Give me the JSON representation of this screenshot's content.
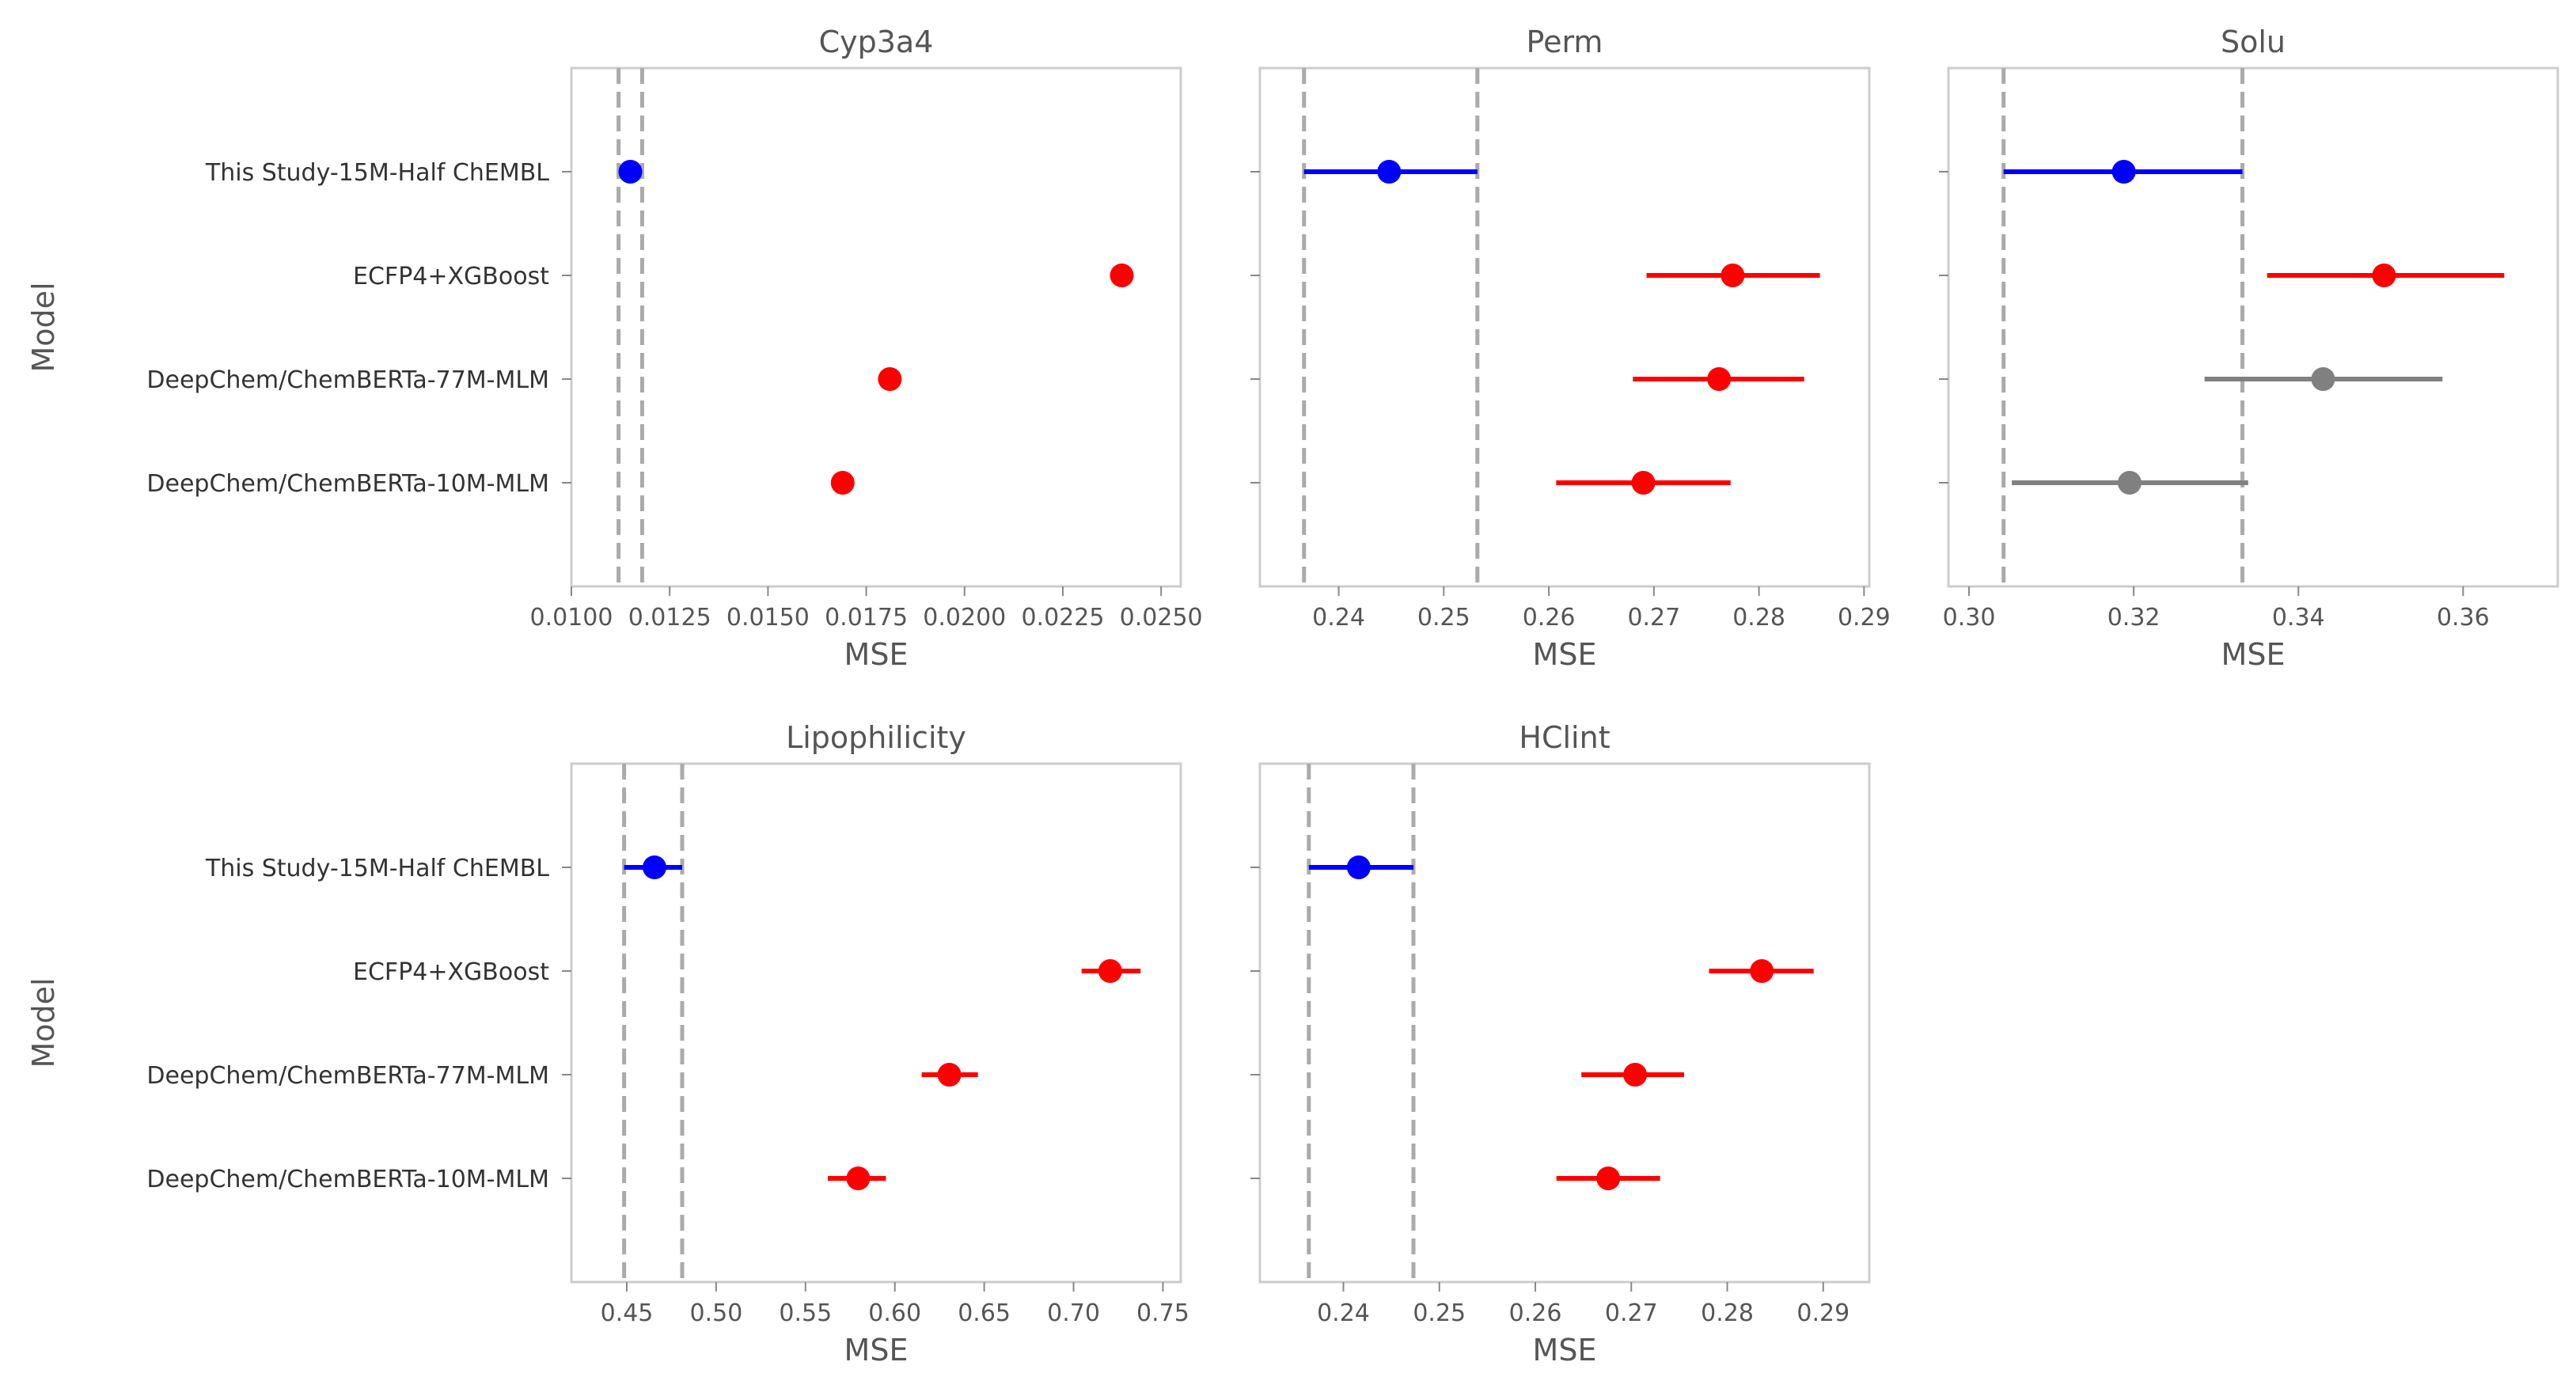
{
  "colors": {
    "this_study": "#0000ff",
    "significant": "#ff0000",
    "not_significant": "#808080",
    "reference": "#aaaaaa"
  },
  "ylabel": "Model",
  "xlabel": "MSE",
  "chart_data": [
    {
      "type": "scatter",
      "title": "Cyp3a4",
      "xlabel": "MSE",
      "ylabel": "Model",
      "categories": [
        "This Study-15M-Half ChEMBL",
        "ECFP4+XGBoost",
        "DeepChem/ChemBERTa-77M-MLM",
        "DeepChem/ChemBERTa-10M-MLM"
      ],
      "xlim": [
        0.01,
        0.0255
      ],
      "xticks": [
        0.01,
        0.0125,
        0.015,
        0.0175,
        0.02,
        0.0225,
        0.025
      ],
      "xtick_labels": [
        "0.0100",
        "0.0125",
        "0.0150",
        "0.0175",
        "0.0200",
        "0.0225",
        "0.0250"
      ],
      "ref_lines": [
        0.0112,
        0.0118
      ],
      "points": [
        {
          "model": "This Study-15M-Half ChEMBL",
          "mse": 0.0115,
          "lo": 0.0115,
          "hi": 0.0115,
          "color": "#0000ff"
        },
        {
          "model": "ECFP4+XGBoost",
          "mse": 0.024,
          "lo": 0.024,
          "hi": 0.024,
          "color": "#ff0000"
        },
        {
          "model": "DeepChem/ChemBERTa-77M-MLM",
          "mse": 0.0181,
          "lo": 0.0181,
          "hi": 0.0181,
          "color": "#ff0000"
        },
        {
          "model": "DeepChem/ChemBERTa-10M-MLM",
          "mse": 0.0169,
          "lo": 0.0169,
          "hi": 0.0169,
          "color": "#ff0000"
        }
      ]
    },
    {
      "type": "scatter",
      "title": "Perm",
      "xlabel": "MSE",
      "categories": [
        "This Study-15M-Half ChEMBL",
        "ECFP4+XGBoost",
        "DeepChem/ChemBERTa-77M-MLM",
        "DeepChem/ChemBERTa-10M-MLM"
      ],
      "xlim": [
        0.2325,
        0.2905
      ],
      "xticks": [
        0.24,
        0.25,
        0.26,
        0.27,
        0.28,
        0.29
      ],
      "xtick_labels": [
        "0.24",
        "0.25",
        "0.26",
        "0.27",
        "0.28",
        "0.29"
      ],
      "ref_lines": [
        0.2367,
        0.2532
      ],
      "points": [
        {
          "model": "This Study-15M-Half ChEMBL",
          "mse": 0.2448,
          "lo": 0.2367,
          "hi": 0.2532,
          "color": "#0000ff"
        },
        {
          "model": "ECFP4+XGBoost",
          "mse": 0.2775,
          "lo": 0.2693,
          "hi": 0.2858,
          "color": "#ff0000"
        },
        {
          "model": "DeepChem/ChemBERTa-77M-MLM",
          "mse": 0.2762,
          "lo": 0.268,
          "hi": 0.2843,
          "color": "#ff0000"
        },
        {
          "model": "DeepChem/ChemBERTa-10M-MLM",
          "mse": 0.269,
          "lo": 0.2607,
          "hi": 0.2773,
          "color": "#ff0000"
        }
      ]
    },
    {
      "type": "scatter",
      "title": "Solu",
      "xlabel": "MSE",
      "categories": [
        "This Study-15M-Half ChEMBL",
        "ECFP4+XGBoost",
        "DeepChem/ChemBERTa-77M-MLM",
        "DeepChem/ChemBERTa-10M-MLM"
      ],
      "xlim": [
        0.2975,
        0.3715
      ],
      "xticks": [
        0.3,
        0.32,
        0.34,
        0.36
      ],
      "xtick_labels": [
        "0.30",
        "0.32",
        "0.34",
        "0.36"
      ],
      "ref_lines": [
        0.3042,
        0.3332
      ],
      "points": [
        {
          "model": "This Study-15M-Half ChEMBL",
          "mse": 0.3188,
          "lo": 0.3042,
          "hi": 0.3332,
          "color": "#0000ff"
        },
        {
          "model": "ECFP4+XGBoost",
          "mse": 0.3504,
          "lo": 0.3362,
          "hi": 0.365,
          "color": "#ff0000"
        },
        {
          "model": "DeepChem/ChemBERTa-77M-MLM",
          "mse": 0.343,
          "lo": 0.3286,
          "hi": 0.3575,
          "color": "#808080"
        },
        {
          "model": "DeepChem/ChemBERTa-10M-MLM",
          "mse": 0.3195,
          "lo": 0.3052,
          "hi": 0.3339,
          "color": "#808080"
        }
      ]
    },
    {
      "type": "scatter",
      "title": "Lipophilicity",
      "xlabel": "MSE",
      "ylabel": "Model",
      "categories": [
        "This Study-15M-Half ChEMBL",
        "ECFP4+XGBoost",
        "DeepChem/ChemBERTa-77M-MLM",
        "DeepChem/ChemBERTa-10M-MLM"
      ],
      "xlim": [
        0.419,
        0.76
      ],
      "xticks": [
        0.45,
        0.5,
        0.55,
        0.6,
        0.65,
        0.7,
        0.75
      ],
      "xtick_labels": [
        "0.45",
        "0.50",
        "0.55",
        "0.60",
        "0.65",
        "0.70",
        "0.75"
      ],
      "ref_lines": [
        0.4485,
        0.481
      ],
      "points": [
        {
          "model": "This Study-15M-Half ChEMBL",
          "mse": 0.4655,
          "lo": 0.4485,
          "hi": 0.481,
          "color": "#0000ff"
        },
        {
          "model": "ECFP4+XGBoost",
          "mse": 0.7205,
          "lo": 0.7045,
          "hi": 0.7375,
          "color": "#ff0000"
        },
        {
          "model": "DeepChem/ChemBERTa-77M-MLM",
          "mse": 0.6305,
          "lo": 0.615,
          "hi": 0.6465,
          "color": "#ff0000"
        },
        {
          "model": "DeepChem/ChemBERTa-10M-MLM",
          "mse": 0.5795,
          "lo": 0.5625,
          "hi": 0.595,
          "color": "#ff0000"
        }
      ]
    },
    {
      "type": "scatter",
      "title": "HClint",
      "xlabel": "MSE",
      "categories": [
        "This Study-15M-Half ChEMBL",
        "ECFP4+XGBoost",
        "DeepChem/ChemBERTa-77M-MLM",
        "DeepChem/ChemBERTa-10M-MLM"
      ],
      "xlim": [
        0.2313,
        0.2948
      ],
      "xticks": [
        0.24,
        0.25,
        0.26,
        0.27,
        0.28,
        0.29
      ],
      "xtick_labels": [
        "0.24",
        "0.25",
        "0.26",
        "0.27",
        "0.28",
        "0.29"
      ],
      "ref_lines": [
        0.2364,
        0.2473
      ],
      "points": [
        {
          "model": "This Study-15M-Half ChEMBL",
          "mse": 0.2416,
          "lo": 0.2364,
          "hi": 0.2473,
          "color": "#0000ff"
        },
        {
          "model": "ECFP4+XGBoost",
          "mse": 0.2836,
          "lo": 0.2781,
          "hi": 0.289,
          "color": "#ff0000"
        },
        {
          "model": "DeepChem/ChemBERTa-77M-MLM",
          "mse": 0.2704,
          "lo": 0.2648,
          "hi": 0.2755,
          "color": "#ff0000"
        },
        {
          "model": "DeepChem/ChemBERTa-10M-MLM",
          "mse": 0.2676,
          "lo": 0.2622,
          "hi": 0.273,
          "color": "#ff0000"
        }
      ]
    }
  ]
}
